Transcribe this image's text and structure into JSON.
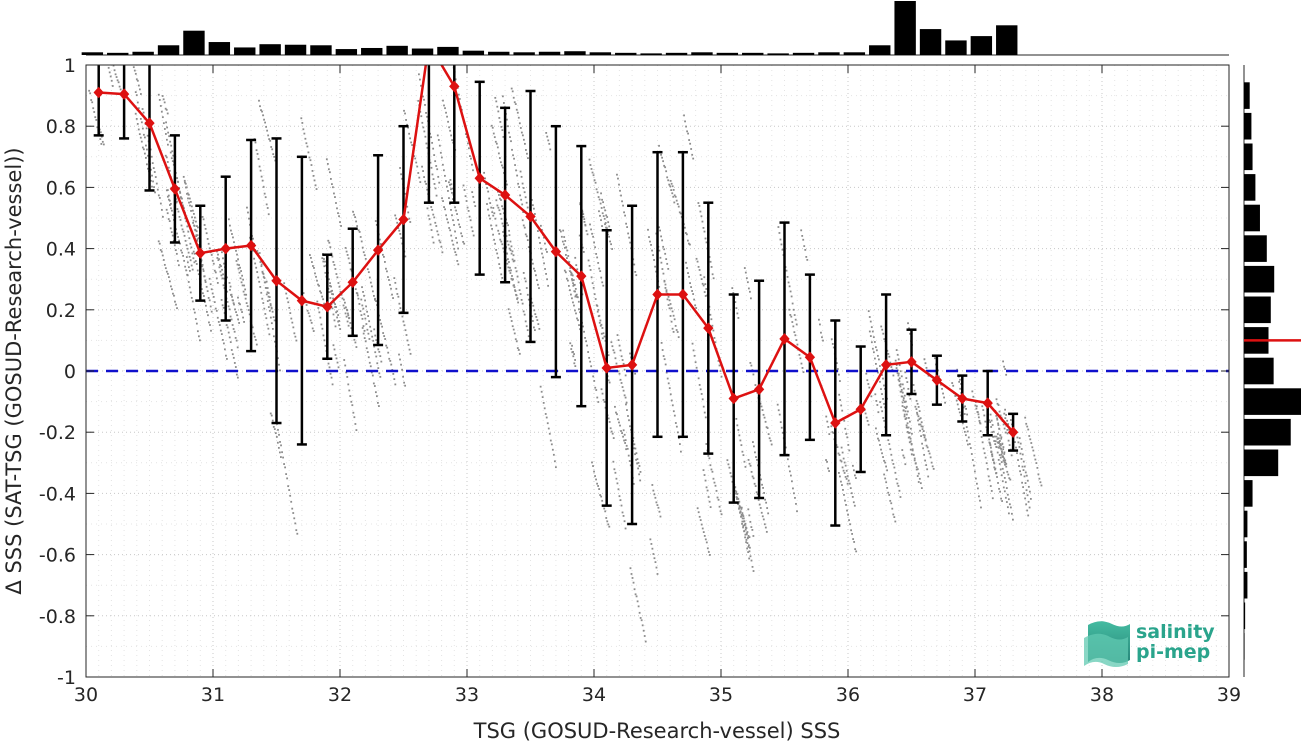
{
  "chart_data": {
    "type": "scatter",
    "xlabel": "TSG (GOSUD-Research-vessel) SSS",
    "ylabel": "Δ SSS (SAT-TSG (GOSUD-Research-vessel))",
    "xlim": [
      30,
      39
    ],
    "ylim": [
      -1,
      1
    ],
    "xticks": [
      "30",
      "31",
      "32",
      "33",
      "34",
      "35",
      "36",
      "37",
      "38",
      "39"
    ],
    "yticks": [
      "-1",
      "-0.8",
      "-0.6",
      "-0.4",
      "-0.2",
      "0",
      "0.2",
      "0.4",
      "0.6",
      "0.8",
      "1"
    ],
    "grid": "dotted",
    "zero_line": {
      "y": 0,
      "color": "#1010cc",
      "style": "dashed"
    },
    "binned_mean": {
      "color": "#dd1111",
      "marker": "diamond",
      "x": [
        30.1,
        30.3,
        30.5,
        30.7,
        30.9,
        31.1,
        31.3,
        31.5,
        31.7,
        31.9,
        32.1,
        32.3,
        32.5,
        32.7,
        32.9,
        33.1,
        33.3,
        33.5,
        33.7,
        33.9,
        34.1,
        34.3,
        34.5,
        34.7,
        34.9,
        35.1,
        35.3,
        35.5,
        35.7,
        35.9,
        36.1,
        36.3,
        36.5,
        36.7,
        36.9,
        37.1,
        37.3
      ],
      "mean": [
        0.91,
        0.905,
        0.81,
        0.595,
        0.385,
        0.4,
        0.41,
        0.295,
        0.23,
        0.21,
        0.29,
        0.395,
        0.495,
        1.07,
        0.93,
        0.63,
        0.575,
        0.505,
        0.39,
        0.31,
        0.01,
        0.02,
        0.25,
        0.25,
        0.14,
        -0.09,
        -0.06,
        0.105,
        0.045,
        -0.17,
        -0.125,
        0.02,
        0.03,
        -0.03,
        -0.09,
        -0.105,
        -0.2
      ],
      "std": [
        0.14,
        0.145,
        0.22,
        0.175,
        0.155,
        0.235,
        0.345,
        0.465,
        0.47,
        0.17,
        0.175,
        0.31,
        0.305,
        0.52,
        0.38,
        0.315,
        0.285,
        0.41,
        0.41,
        0.425,
        0.45,
        0.52,
        0.465,
        0.465,
        0.41,
        0.34,
        0.355,
        0.38,
        0.27,
        0.335,
        0.205,
        0.23,
        0.105,
        0.08,
        0.075,
        0.105,
        0.06
      ]
    },
    "top_histogram": {
      "bin_centers": [
        30.05,
        30.25,
        30.45,
        30.65,
        30.85,
        31.05,
        31.25,
        31.45,
        31.65,
        31.85,
        32.05,
        32.25,
        32.45,
        32.65,
        32.85,
        33.05,
        33.25,
        33.45,
        33.65,
        33.85,
        34.05,
        34.25,
        34.45,
        34.65,
        34.85,
        35.05,
        35.25,
        35.45,
        35.65,
        35.85,
        36.05,
        36.25,
        36.45,
        36.65,
        36.85,
        37.05,
        37.25
      ],
      "relative_counts": [
        0.05,
        0.04,
        0.06,
        0.18,
        0.45,
        0.24,
        0.14,
        0.2,
        0.19,
        0.18,
        0.11,
        0.13,
        0.17,
        0.12,
        0.15,
        0.08,
        0.06,
        0.05,
        0.06,
        0.07,
        0.05,
        0.04,
        0.03,
        0.04,
        0.05,
        0.04,
        0.04,
        0.03,
        0.04,
        0.05,
        0.05,
        0.18,
        1.0,
        0.48,
        0.27,
        0.35,
        0.55
      ],
      "color": "#000000"
    },
    "right_histogram": {
      "bin_centers": [
        0.9,
        0.8,
        0.7,
        0.6,
        0.5,
        0.4,
        0.3,
        0.2,
        0.1,
        0.0,
        -0.1,
        -0.2,
        -0.3,
        -0.4,
        -0.5,
        -0.6,
        -0.7,
        -0.8,
        -0.9
      ],
      "relative_counts": [
        0.1,
        0.13,
        0.15,
        0.2,
        0.28,
        0.4,
        0.53,
        0.47,
        0.43,
        0.52,
        1.0,
        0.82,
        0.6,
        0.15,
        0.06,
        0.05,
        0.06,
        0.02,
        0.01
      ],
      "median_marker": {
        "y": 0.1,
        "color": "#dd1111"
      },
      "color": "#000000"
    },
    "scatter_color": "#8c8c8c"
  },
  "logo": {
    "line1": "salinity",
    "line2": "pi-mep"
  }
}
